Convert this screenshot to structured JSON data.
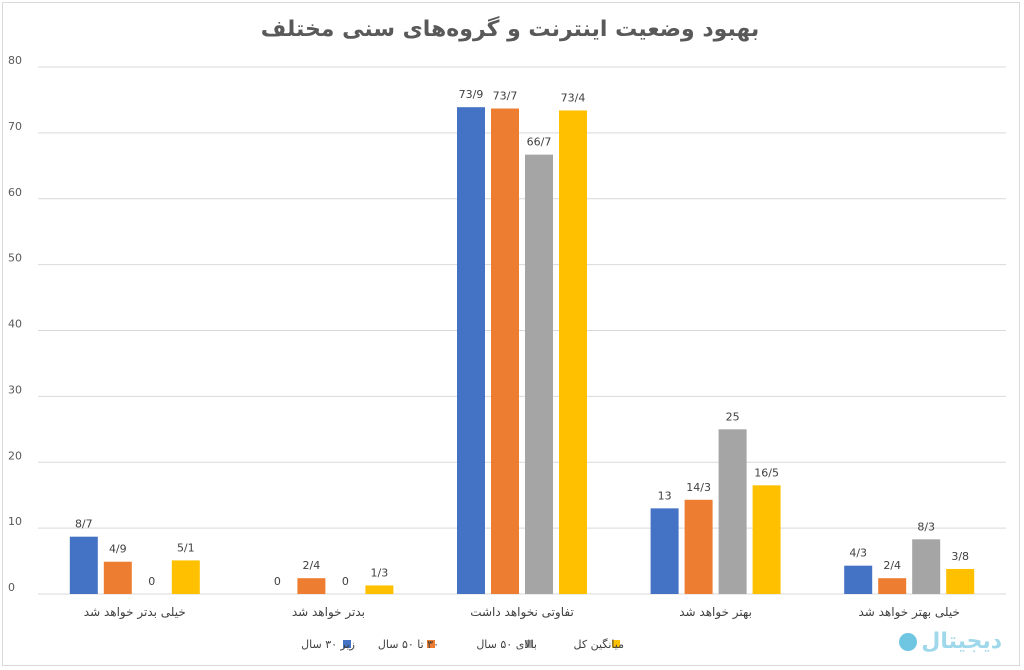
{
  "chart_data": {
    "type": "bar",
    "title": "بهبود وضعیت اینترنت و گروه‌های سنی مختلف",
    "xlabel": "",
    "ylabel": "",
    "ylim": [
      0,
      80
    ],
    "y_ticks": [
      "0",
      "10",
      "20",
      "30",
      "40",
      "50",
      "60",
      "70",
      "80"
    ],
    "grid": true,
    "legend_position": "bottom",
    "categories": [
      "خیلی بدتر خواهد شد",
      "بدتر خواهد شد",
      "تفاوتی نخواهد داشت",
      "بهتر خواهد شد",
      "خیلی بهتر خواهد شد"
    ],
    "series": [
      {
        "name": "زیر ۳۰ سال",
        "color": "#4472c4",
        "values": [
          8.7,
          0,
          73.9,
          13,
          4.3
        ],
        "labels": [
          "8/7",
          "0",
          "73/9",
          "13",
          "4/3"
        ]
      },
      {
        "name": "۳۰ تا ۵۰ سال",
        "color": "#ed7d31",
        "values": [
          4.9,
          2.4,
          73.7,
          14.3,
          2.4
        ],
        "labels": [
          "4/9",
          "2/4",
          "73/7",
          "14/3",
          "2/4"
        ]
      },
      {
        "name": "بالای ۵۰ سال",
        "color": "#a5a5a5",
        "values": [
          0,
          0,
          66.7,
          25,
          8.3
        ],
        "labels": [
          "0",
          "0",
          "66/7",
          "25",
          "8/3"
        ]
      },
      {
        "name": "میانگین کل",
        "color": "#ffc000",
        "values": [
          5.1,
          1.3,
          73.4,
          16.5,
          3.8
        ],
        "labels": [
          "5/1",
          "1/3",
          "73/4",
          "16/5",
          "3/8"
        ]
      }
    ]
  },
  "watermark": {
    "text": "دیجیتال"
  }
}
